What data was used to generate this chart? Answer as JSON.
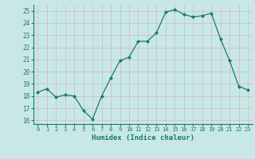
{
  "x": [
    0,
    1,
    2,
    3,
    4,
    5,
    6,
    7,
    8,
    9,
    10,
    11,
    12,
    13,
    14,
    15,
    16,
    17,
    18,
    19,
    20,
    21,
    22,
    23
  ],
  "y": [
    18.3,
    18.6,
    17.9,
    18.1,
    18.0,
    16.8,
    16.1,
    18.0,
    19.5,
    20.9,
    21.2,
    22.5,
    22.5,
    23.2,
    24.9,
    25.1,
    24.7,
    24.5,
    24.6,
    24.8,
    22.7,
    20.9,
    18.8,
    18.5
  ],
  "xlabel": "Humidex (Indice chaleur)",
  "ylim": [
    15.7,
    25.5
  ],
  "xlim": [
    -0.5,
    23.5
  ],
  "yticks": [
    16,
    17,
    18,
    19,
    20,
    21,
    22,
    23,
    24,
    25
  ],
  "xticks": [
    0,
    1,
    2,
    3,
    4,
    5,
    6,
    7,
    8,
    9,
    10,
    11,
    12,
    13,
    14,
    15,
    16,
    17,
    18,
    19,
    20,
    21,
    22,
    23
  ],
  "line_color": "#1a7a6e",
  "marker_color": "#1a7a6e",
  "bg_color": "#c8e8e8",
  "grid_color": "#b8d4d4",
  "tick_color": "#1a7a6e",
  "label_color": "#1a7a6e"
}
